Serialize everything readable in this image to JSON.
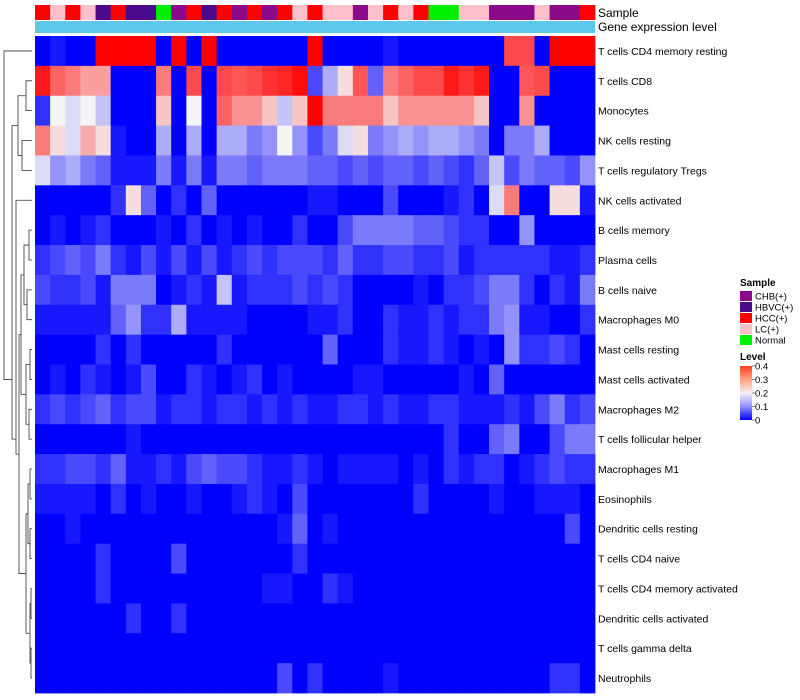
{
  "chart_data": {
    "type": "heatmap",
    "annotations": [
      "Sample",
      "Gene expression level"
    ],
    "rows": [
      "T cells CD4 memory resting",
      "T cells CD8",
      "Monocytes",
      "NK cells resting",
      "T cells regulatory  Tregs",
      "NK cells activated",
      "B cells memory",
      "Plasma cells",
      "B cells naive",
      "Macrophages M0",
      "Mast cells resting",
      "Mast cells activated",
      "Macrophages M2",
      "T cells follicular helper",
      "Macrophages M1",
      "Eosinophils",
      "Dendritic cells resting",
      "T cells CD4 naive",
      "T cells CD4 memory activated",
      "Dendritic cells activated",
      "T cells gamma delta",
      "Neutrophils"
    ],
    "sample_groups": [
      "HCC(+)",
      "LC(+)",
      "HCC(+)",
      "LC(+)",
      "HBVC(+)",
      "HCC(+)",
      "HBVC(+)",
      "HBVC(+)",
      "Normal",
      "CHB(+)",
      "HCC(+)",
      "HBVC(+)",
      "HCC(+)",
      "CHB(+)",
      "HCC(+)",
      "CHB(+)",
      "HCC(+)",
      "LC(+)",
      "HCC(+)",
      "LC(+)",
      "LC(+)",
      "CHB(+)",
      "LC(+)",
      "HCC(+)",
      "LC(+)",
      "HCC(+)",
      "Normal",
      "Normal",
      "LC(+)",
      "LC(+)",
      "CHB(+)",
      "CHB(+)",
      "CHB(+)",
      "LC(+)",
      "CHB(+)",
      "CHB(+)",
      "HCC(+)"
    ],
    "values": [
      [
        0.0,
        0.02,
        0.0,
        0.0,
        0.4,
        0.4,
        0.4,
        0.4,
        0.0,
        0.4,
        0.0,
        0.4,
        0.0,
        0.0,
        0.0,
        0.0,
        0.0,
        0.0,
        0.4,
        0.0,
        0.0,
        0.0,
        0.0,
        0.02,
        0.0,
        0.0,
        0.0,
        0.0,
        0.0,
        0.0,
        0.0,
        0.34,
        0.34,
        0.0,
        0.4,
        0.4,
        0.4
      ],
      [
        0.38,
        0.32,
        0.3,
        0.27,
        0.27,
        0.0,
        0.0,
        0.0,
        0.3,
        0.0,
        0.34,
        0.0,
        0.34,
        0.33,
        0.34,
        0.36,
        0.37,
        0.39,
        0.06,
        0.14,
        0.22,
        0.33,
        0.08,
        0.3,
        0.32,
        0.34,
        0.34,
        0.38,
        0.36,
        0.38,
        0.0,
        0.0,
        0.33,
        0.34,
        0.0,
        0.0,
        0.0
      ],
      [
        0.04,
        0.2,
        0.18,
        0.2,
        0.16,
        0.0,
        0.0,
        0.0,
        0.24,
        0.0,
        0.2,
        0.0,
        0.32,
        0.28,
        0.28,
        0.24,
        0.16,
        0.24,
        0.4,
        0.3,
        0.3,
        0.3,
        0.3,
        0.24,
        0.28,
        0.28,
        0.28,
        0.28,
        0.28,
        0.24,
        0.0,
        0.0,
        0.28,
        0.0,
        0.0,
        0.0,
        0.0
      ],
      [
        0.3,
        0.22,
        0.18,
        0.26,
        0.22,
        0.02,
        0.0,
        0.0,
        0.14,
        0.0,
        0.14,
        0.0,
        0.14,
        0.14,
        0.1,
        0.12,
        0.2,
        0.12,
        0.06,
        0.1,
        0.18,
        0.22,
        0.1,
        0.12,
        0.14,
        0.12,
        0.14,
        0.14,
        0.12,
        0.1,
        0.0,
        0.1,
        0.1,
        0.14,
        0.0,
        0.0,
        0.0
      ],
      [
        0.18,
        0.12,
        0.14,
        0.1,
        0.08,
        0.02,
        0.02,
        0.02,
        0.1,
        0.02,
        0.1,
        0.02,
        0.1,
        0.1,
        0.08,
        0.1,
        0.1,
        0.1,
        0.08,
        0.08,
        0.06,
        0.08,
        0.06,
        0.08,
        0.08,
        0.06,
        0.08,
        0.06,
        0.04,
        0.08,
        0.16,
        0.06,
        0.1,
        0.08,
        0.08,
        0.06,
        0.12
      ],
      [
        0.0,
        0.0,
        0.0,
        0.0,
        0.0,
        0.04,
        0.22,
        0.08,
        0.0,
        0.04,
        0.0,
        0.08,
        0.0,
        0.0,
        0.0,
        0.0,
        0.0,
        0.0,
        0.02,
        0.02,
        0.0,
        0.0,
        0.0,
        0.06,
        0.0,
        0.0,
        0.0,
        0.02,
        0.04,
        0.0,
        0.18,
        0.3,
        0.0,
        0.0,
        0.22,
        0.22,
        0.02
      ],
      [
        0.0,
        0.02,
        0.0,
        0.02,
        0.04,
        0.0,
        0.0,
        0.0,
        0.02,
        0.0,
        0.04,
        0.0,
        0.02,
        0.0,
        0.02,
        0.0,
        0.0,
        0.04,
        0.0,
        0.0,
        0.06,
        0.1,
        0.1,
        0.1,
        0.1,
        0.08,
        0.08,
        0.06,
        0.04,
        0.04,
        0.0,
        0.0,
        0.12,
        0.0,
        0.0,
        0.0,
        0.0
      ],
      [
        0.04,
        0.06,
        0.08,
        0.06,
        0.1,
        0.04,
        0.02,
        0.06,
        0.02,
        0.06,
        0.02,
        0.06,
        0.02,
        0.04,
        0.06,
        0.04,
        0.06,
        0.06,
        0.06,
        0.04,
        0.08,
        0.04,
        0.04,
        0.06,
        0.06,
        0.04,
        0.04,
        0.06,
        0.02,
        0.04,
        0.04,
        0.04,
        0.04,
        0.04,
        0.02,
        0.02,
        0.04
      ],
      [
        0.06,
        0.04,
        0.04,
        0.06,
        0.02,
        0.1,
        0.1,
        0.1,
        0.0,
        0.02,
        0.04,
        0.02,
        0.16,
        0.02,
        0.04,
        0.04,
        0.04,
        0.06,
        0.04,
        0.06,
        0.04,
        0.0,
        0.0,
        0.0,
        0.0,
        0.02,
        0.0,
        0.04,
        0.04,
        0.06,
        0.1,
        0.1,
        0.04,
        0.0,
        0.04,
        0.02,
        0.1
      ],
      [
        0.02,
        0.02,
        0.02,
        0.02,
        0.02,
        0.08,
        0.12,
        0.04,
        0.04,
        0.14,
        0.02,
        0.02,
        0.02,
        0.02,
        0.0,
        0.0,
        0.0,
        0.0,
        0.02,
        0.02,
        0.04,
        0.0,
        0.0,
        0.04,
        0.02,
        0.02,
        0.04,
        0.02,
        0.04,
        0.04,
        0.1,
        0.12,
        0.02,
        0.02,
        0.0,
        0.0,
        0.04
      ],
      [
        0.0,
        0.0,
        0.0,
        0.0,
        0.04,
        0.0,
        0.04,
        0.0,
        0.0,
        0.0,
        0.0,
        0.0,
        0.04,
        0.0,
        0.0,
        0.0,
        0.0,
        0.0,
        0.0,
        0.08,
        0.0,
        0.0,
        0.0,
        0.04,
        0.02,
        0.02,
        0.04,
        0.02,
        0.0,
        0.02,
        0.0,
        0.12,
        0.04,
        0.04,
        0.06,
        0.04,
        0.0
      ],
      [
        0.0,
        0.02,
        0.0,
        0.04,
        0.02,
        0.0,
        0.02,
        0.06,
        0.0,
        0.0,
        0.04,
        0.02,
        0.0,
        0.02,
        0.04,
        0.0,
        0.02,
        0.0,
        0.0,
        0.0,
        0.0,
        0.02,
        0.02,
        0.0,
        0.0,
        0.0,
        0.0,
        0.0,
        0.02,
        0.0,
        0.08,
        0.0,
        0.0,
        0.0,
        0.0,
        0.0,
        0.0
      ],
      [
        0.04,
        0.06,
        0.04,
        0.06,
        0.08,
        0.04,
        0.06,
        0.06,
        0.02,
        0.04,
        0.04,
        0.02,
        0.04,
        0.04,
        0.02,
        0.04,
        0.02,
        0.04,
        0.02,
        0.02,
        0.04,
        0.04,
        0.02,
        0.04,
        0.02,
        0.02,
        0.04,
        0.04,
        0.02,
        0.02,
        0.02,
        0.04,
        0.02,
        0.06,
        0.1,
        0.04,
        0.06
      ],
      [
        0.0,
        0.0,
        0.0,
        0.0,
        0.0,
        0.0,
        0.02,
        0.0,
        0.0,
        0.0,
        0.0,
        0.0,
        0.0,
        0.0,
        0.0,
        0.0,
        0.0,
        0.0,
        0.0,
        0.0,
        0.0,
        0.0,
        0.0,
        0.0,
        0.0,
        0.0,
        0.0,
        0.04,
        0.0,
        0.0,
        0.08,
        0.1,
        0.0,
        0.0,
        0.06,
        0.1,
        0.1
      ],
      [
        0.04,
        0.04,
        0.06,
        0.06,
        0.04,
        0.08,
        0.02,
        0.02,
        0.04,
        0.02,
        0.06,
        0.08,
        0.06,
        0.06,
        0.04,
        0.02,
        0.02,
        0.04,
        0.02,
        0.0,
        0.02,
        0.02,
        0.02,
        0.02,
        0.0,
        0.02,
        0.0,
        0.04,
        0.02,
        0.04,
        0.04,
        0.0,
        0.02,
        0.04,
        0.06,
        0.04,
        0.04
      ],
      [
        0.02,
        0.02,
        0.02,
        0.02,
        0.0,
        0.04,
        0.0,
        0.02,
        0.0,
        0.0,
        0.02,
        0.0,
        0.0,
        0.02,
        0.04,
        0.02,
        0.0,
        0.06,
        0.0,
        0.0,
        0.0,
        0.0,
        0.0,
        0.0,
        0.0,
        0.04,
        0.0,
        0.0,
        0.0,
        0.0,
        0.02,
        0.0,
        0.0,
        0.02,
        0.02,
        0.02,
        0.0
      ],
      [
        0.0,
        0.0,
        0.02,
        0.0,
        0.0,
        0.0,
        0.0,
        0.0,
        0.0,
        0.0,
        0.0,
        0.0,
        0.0,
        0.0,
        0.0,
        0.0,
        0.02,
        0.08,
        0.0,
        0.02,
        0.0,
        0.0,
        0.0,
        0.0,
        0.0,
        0.0,
        0.0,
        0.0,
        0.0,
        0.0,
        0.0,
        0.0,
        0.0,
        0.0,
        0.0,
        0.06,
        0.0
      ],
      [
        0.0,
        0.0,
        0.0,
        0.0,
        0.04,
        0.0,
        0.0,
        0.0,
        0.0,
        0.06,
        0.0,
        0.0,
        0.0,
        0.0,
        0.0,
        0.0,
        0.0,
        0.04,
        0.0,
        0.0,
        0.0,
        0.0,
        0.0,
        0.0,
        0.0,
        0.0,
        0.0,
        0.0,
        0.0,
        0.0,
        0.0,
        0.0,
        0.0,
        0.0,
        0.0,
        0.0,
        0.0
      ],
      [
        0.0,
        0.0,
        0.0,
        0.0,
        0.04,
        0.0,
        0.0,
        0.0,
        0.0,
        0.0,
        0.0,
        0.0,
        0.0,
        0.0,
        0.0,
        0.02,
        0.02,
        0.0,
        0.0,
        0.04,
        0.02,
        0.0,
        0.0,
        0.0,
        0.0,
        0.0,
        0.0,
        0.0,
        0.0,
        0.0,
        0.0,
        0.0,
        0.0,
        0.0,
        0.0,
        0.0,
        0.0
      ],
      [
        0.0,
        0.0,
        0.0,
        0.0,
        0.0,
        0.0,
        0.04,
        0.0,
        0.0,
        0.04,
        0.0,
        0.0,
        0.0,
        0.0,
        0.0,
        0.0,
        0.0,
        0.0,
        0.0,
        0.0,
        0.0,
        0.0,
        0.0,
        0.0,
        0.0,
        0.0,
        0.0,
        0.0,
        0.0,
        0.0,
        0.0,
        0.0,
        0.0,
        0.0,
        0.0,
        0.0,
        0.0
      ],
      [
        0.0,
        0.0,
        0.0,
        0.0,
        0.0,
        0.0,
        0.0,
        0.0,
        0.0,
        0.0,
        0.0,
        0.0,
        0.0,
        0.0,
        0.0,
        0.0,
        0.0,
        0.0,
        0.0,
        0.0,
        0.0,
        0.0,
        0.0,
        0.0,
        0.0,
        0.0,
        0.0,
        0.0,
        0.0,
        0.0,
        0.0,
        0.0,
        0.0,
        0.0,
        0.0,
        0.0,
        0.0
      ],
      [
        0.0,
        0.0,
        0.0,
        0.0,
        0.0,
        0.0,
        0.0,
        0.0,
        0.0,
        0.0,
        0.0,
        0.0,
        0.0,
        0.0,
        0.0,
        0.0,
        0.06,
        0.0,
        0.04,
        0.0,
        0.0,
        0.0,
        0.0,
        0.02,
        0.0,
        0.0,
        0.0,
        0.0,
        0.0,
        0.0,
        0.0,
        0.0,
        0.0,
        0.0,
        0.04,
        0.04,
        0.0
      ]
    ],
    "legend": {
      "sample": {
        "title": "Sample",
        "entries": [
          {
            "label": "CHB(+)",
            "color": "#8B0A8B"
          },
          {
            "label": "HBVC(+)",
            "color": "#4B0A8B"
          },
          {
            "label": "HCC(+)",
            "color": "#FF0000"
          },
          {
            "label": "LC(+)",
            "color": "#FFC0CB"
          },
          {
            "label": "Normal",
            "color": "#00EE00"
          }
        ]
      },
      "level": {
        "title": "Level",
        "min": 0,
        "max": 0.4,
        "ticks": [
          "0.4",
          "0.3",
          "0.2",
          "0.1",
          "0"
        ],
        "tick_values": [
          0.4,
          0.3,
          0.2,
          0.1,
          0
        ]
      }
    },
    "colors": {
      "low": "#0000FF",
      "mid": "#F5F5F5",
      "high": "#FF0000",
      "expression_bar": "#5BC8EC"
    }
  }
}
